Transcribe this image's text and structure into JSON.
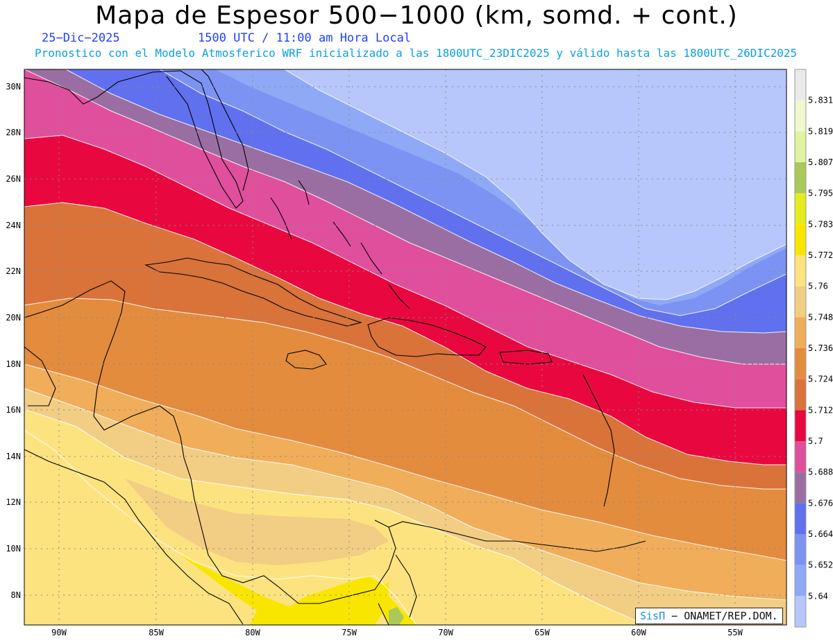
{
  "header": {
    "title": "Mapa de Espesor 500−1000 (km, somd. + cont.)",
    "date": "25−Dic−2025",
    "time": "1500 UTC / 11:00 am Hora Local",
    "subtitle": "Pronostico con el Modelo Atmosferico WRF inicializado a las 1800UTC_23DIC2025 y válido hasta las  1800UTC_26DIC2025"
  },
  "map": {
    "lat_ticks": [
      "30N",
      "28N",
      "26N",
      "24N",
      "22N",
      "20N",
      "18N",
      "16N",
      "14N",
      "12N",
      "10N",
      "8N"
    ],
    "lon_ticks": [
      "90W",
      "85W",
      "80W",
      "75W",
      "70W",
      "65W",
      "60W",
      "55W"
    ],
    "gridlines": true,
    "field": "500-1000 hPa thickness (km)",
    "band_colors": [
      "#b7c7fb",
      "#8fa9f6",
      "#7d93f3",
      "#6070ef",
      "#9a6ea3",
      "#e04f9b",
      "#e8083f",
      "#d9733a",
      "#e38c3e",
      "#f0ad5a",
      "#f2cd84",
      "#fce380",
      "#f9e600",
      "#e3ec1c",
      "#a9c95a",
      "#e0f3a0",
      "#f1f8cf",
      "#eaeaea"
    ]
  },
  "legend": {
    "labels": [
      "5.831",
      "5.819",
      "5.807",
      "5.795",
      "5.783",
      "5.772",
      "5.76",
      "5.748",
      "5.736",
      "5.724",
      "5.712",
      "5.7",
      "5.688",
      "5.676",
      "5.664",
      "5.652",
      "5.64"
    ],
    "colors": [
      "#eaeaea",
      "#f1f8cf",
      "#e0f3a0",
      "#a9c95a",
      "#e3ec1c",
      "#f9e600",
      "#fce380",
      "#f2cd84",
      "#f0ad5a",
      "#e38c3e",
      "#d9733a",
      "#e8083f",
      "#e04f9b",
      "#9a6ea3",
      "#6070ef",
      "#7d93f3",
      "#8fa9f6",
      "#b7c7fb"
    ]
  },
  "credit": {
    "brand": "SisΠ",
    "text": " − ONAMET/REP.DOM."
  }
}
